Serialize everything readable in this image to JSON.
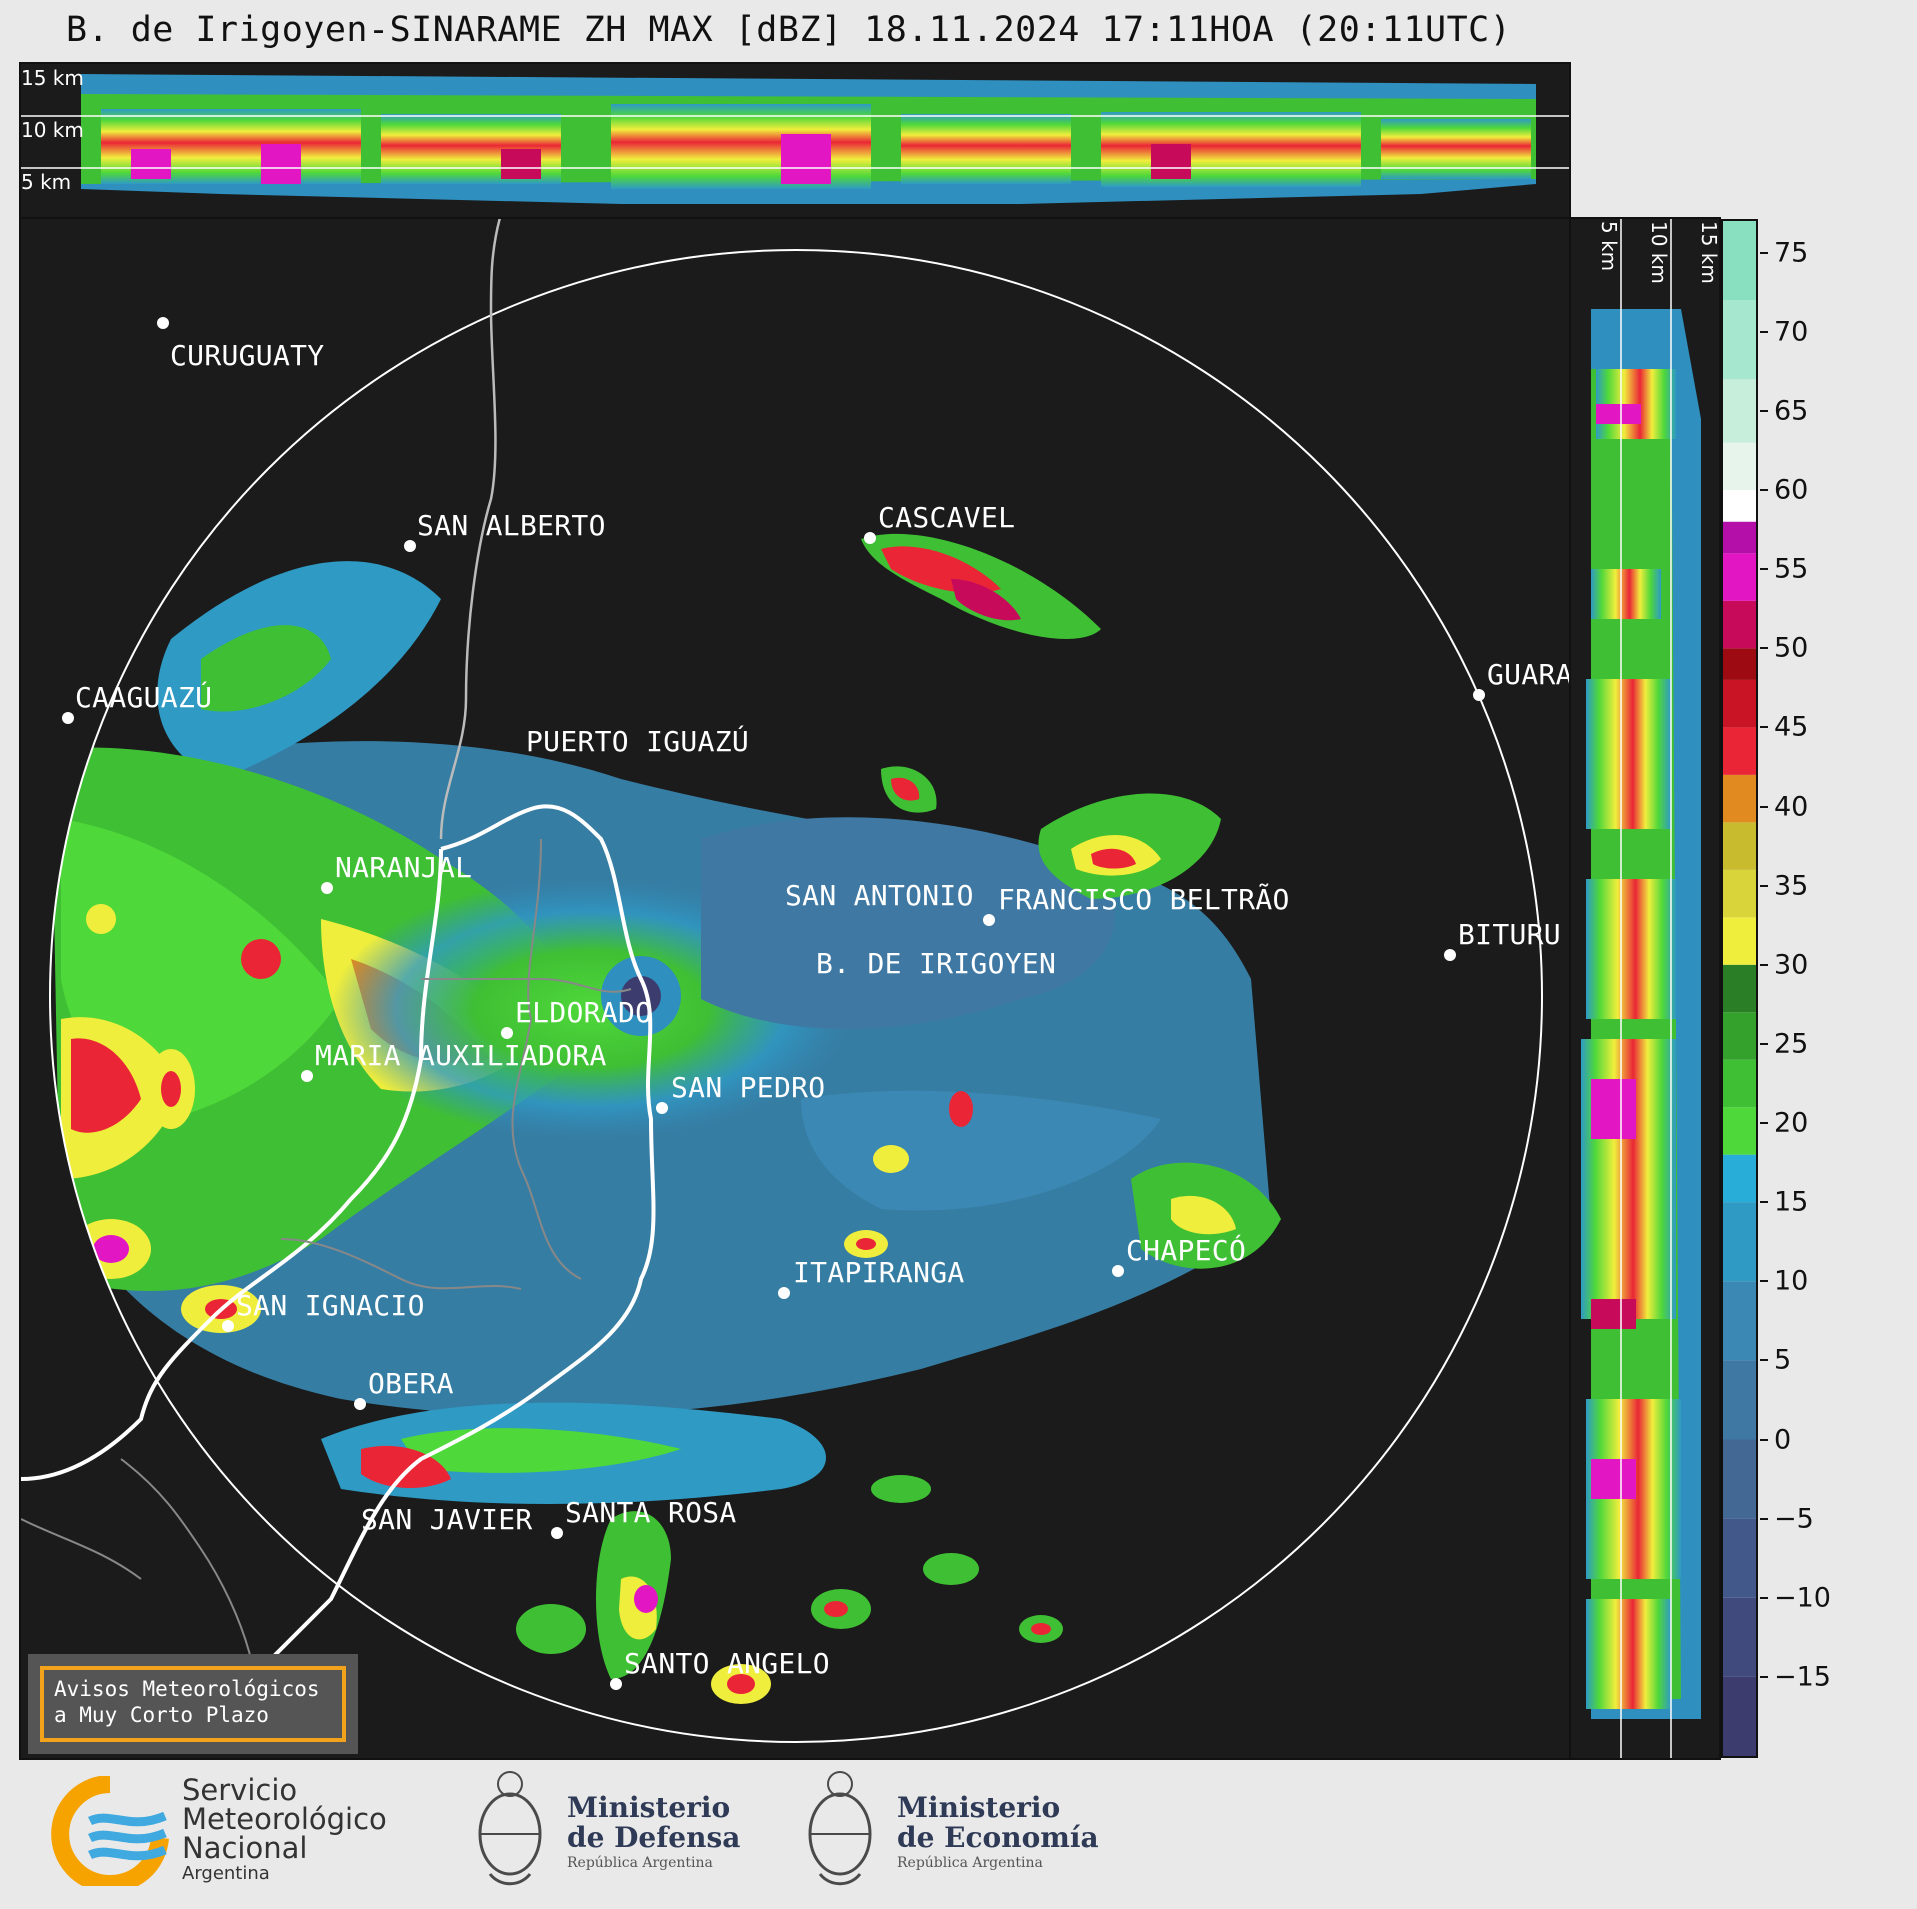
{
  "title": "B. de Irigoyen-SINARAME ZH MAX [dBZ] 18.11.2024 17:11HOA (20:11UTC)",
  "top_panel": {
    "km_labels": [
      "15 km",
      "10 km",
      "5 km"
    ]
  },
  "side_panel": {
    "km_labels": [
      "5 km",
      "10 km",
      "15 km"
    ]
  },
  "colorbar": {
    "unit": "dBZ",
    "ticks": [
      "75",
      "70",
      "65",
      "60",
      "55",
      "50",
      "45",
      "40",
      "35",
      "30",
      "25",
      "20",
      "15",
      "10",
      "5",
      "0",
      "−5",
      "−10",
      "−15"
    ],
    "range": [
      -20,
      77
    ],
    "bands": [
      {
        "from": -20,
        "to": -15,
        "color": "#3c3c6e"
      },
      {
        "from": -15,
        "to": -10,
        "color": "#414a7c"
      },
      {
        "from": -10,
        "to": -5,
        "color": "#43588a"
      },
      {
        "from": -5,
        "to": 0,
        "color": "#436894"
      },
      {
        "from": 0,
        "to": 5,
        "color": "#3f79a3"
      },
      {
        "from": 5,
        "to": 10,
        "color": "#3a88b3"
      },
      {
        "from": 10,
        "to": 15,
        "color": "#2f9ac4"
      },
      {
        "from": 15,
        "to": 18,
        "color": "#28acd8"
      },
      {
        "from": 18,
        "to": 21,
        "color": "#4fd83a"
      },
      {
        "from": 21,
        "to": 24,
        "color": "#3fbf34"
      },
      {
        "from": 24,
        "to": 27,
        "color": "#34a12d"
      },
      {
        "from": 27,
        "to": 30,
        "color": "#2a7e25"
      },
      {
        "from": 30,
        "to": 33,
        "color": "#f0ee3c"
      },
      {
        "from": 33,
        "to": 36,
        "color": "#d8d43a"
      },
      {
        "from": 36,
        "to": 39,
        "color": "#c8bc2e"
      },
      {
        "from": 39,
        "to": 42,
        "color": "#e08a1f"
      },
      {
        "from": 42,
        "to": 45,
        "color": "#ea2636"
      },
      {
        "from": 45,
        "to": 48,
        "color": "#c81424"
      },
      {
        "from": 48,
        "to": 50,
        "color": "#9e0a12"
      },
      {
        "from": 50,
        "to": 53,
        "color": "#c80a5a"
      },
      {
        "from": 53,
        "to": 56,
        "color": "#e316c4"
      },
      {
        "from": 56,
        "to": 58,
        "color": "#b40fa8"
      },
      {
        "from": 58,
        "to": 60,
        "color": "#ffffff"
      },
      {
        "from": 60,
        "to": 63,
        "color": "#e6f4ec"
      },
      {
        "from": 63,
        "to": 67,
        "color": "#c6eedb"
      },
      {
        "from": 67,
        "to": 72,
        "color": "#a6e8cf"
      },
      {
        "from": 72,
        "to": 77,
        "color": "#88e0c0"
      }
    ]
  },
  "map": {
    "radar_site": "B. DE IRIGOYEN",
    "cities": [
      {
        "name": "CURUGUATY"
      },
      {
        "name": "SAN ALBERTO"
      },
      {
        "name": "CASCAVEL"
      },
      {
        "name": "CAAGUAZÚ"
      },
      {
        "name": "GUARA"
      },
      {
        "name": "PUERTO IGUAZÚ"
      },
      {
        "name": "NARANJAL"
      },
      {
        "name": "SAN ANTONIO"
      },
      {
        "name": "FRANCISCO BELTRÃO"
      },
      {
        "name": "BITURU"
      },
      {
        "name": "B. DE IRIGOYEN"
      },
      {
        "name": "ELDORADO"
      },
      {
        "name": "MARIA AUXILIADORA"
      },
      {
        "name": "SAN PEDRO"
      },
      {
        "name": "CHAPECÓ"
      },
      {
        "name": "ITAPIRANGA"
      },
      {
        "name": "SAN IGNACIO"
      },
      {
        "name": "OBERA"
      },
      {
        "name": "SAN JAVIER"
      },
      {
        "name": "SANTA ROSA"
      },
      {
        "name": "SANTO ANGELO"
      }
    ]
  },
  "warning_box": {
    "line1": "Avisos Meteorológicos",
    "line2": "a Muy Corto Plazo"
  },
  "logos": {
    "smn": {
      "line1": "Servicio",
      "line2": "Meteorológico",
      "line3": "Nacional",
      "line4": "Argentina"
    },
    "defensa": {
      "line1": "Ministerio",
      "line2": "de Defensa",
      "line3": "República Argentina"
    },
    "economia": {
      "line1": "Ministerio",
      "line2": "de Economía",
      "line3": "República Argentina"
    }
  }
}
